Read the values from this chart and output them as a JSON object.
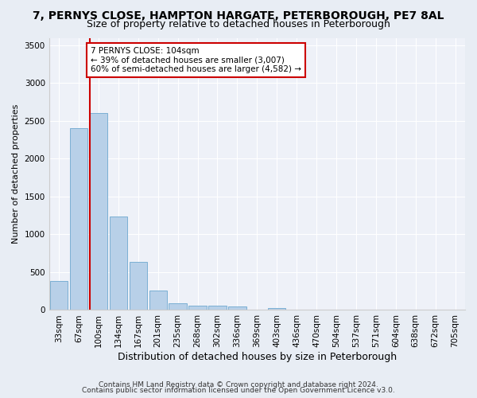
{
  "title1": "7, PERNYS CLOSE, HAMPTON HARGATE, PETERBOROUGH, PE7 8AL",
  "title2": "Size of property relative to detached houses in Peterborough",
  "xlabel": "Distribution of detached houses by size in Peterborough",
  "ylabel": "Number of detached properties",
  "footer1": "Contains HM Land Registry data © Crown copyright and database right 2024.",
  "footer2": "Contains public sector information licensed under the Open Government Licence v3.0.",
  "categories": [
    "33sqm",
    "67sqm",
    "100sqm",
    "134sqm",
    "167sqm",
    "201sqm",
    "235sqm",
    "268sqm",
    "302sqm",
    "336sqm",
    "369sqm",
    "403sqm",
    "436sqm",
    "470sqm",
    "504sqm",
    "537sqm",
    "571sqm",
    "604sqm",
    "638sqm",
    "672sqm",
    "705sqm"
  ],
  "values": [
    380,
    2400,
    2600,
    1240,
    640,
    255,
    90,
    55,
    55,
    45,
    0,
    30,
    0,
    0,
    0,
    0,
    0,
    0,
    0,
    0,
    0
  ],
  "bar_color": "#b8d0e8",
  "bar_edge_color": "#7bafd4",
  "annotation_box_color": "#cc0000",
  "annotation_line1": "7 PERNYS CLOSE: 104sqm",
  "annotation_line2": "← 39% of detached houses are smaller (3,007)",
  "annotation_line3": "60% of semi-detached houses are larger (4,582) →",
  "vline_color": "#cc0000",
  "ylim": [
    0,
    3600
  ],
  "yticks": [
    0,
    500,
    1000,
    1500,
    2000,
    2500,
    3000,
    3500
  ],
  "bg_color": "#e8edf4",
  "plot_bg_color": "#eef1f8",
  "title1_fontsize": 10,
  "title2_fontsize": 9,
  "xlabel_fontsize": 9,
  "ylabel_fontsize": 8,
  "tick_fontsize": 7.5,
  "annotation_fontsize": 7.5,
  "footer_fontsize": 6.5
}
